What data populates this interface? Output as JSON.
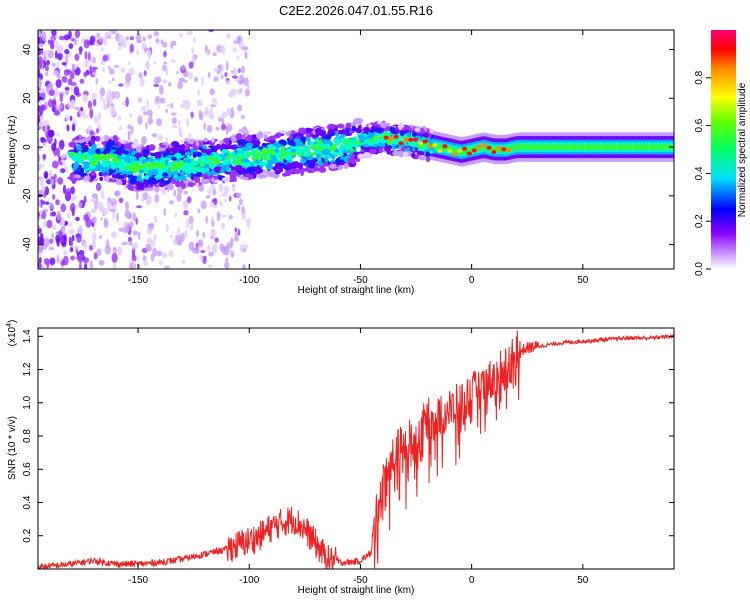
{
  "page_title": "C2E2.2026.047.01.55.R16",
  "chart_data": [
    {
      "type": "heatmap",
      "title": "C2E2.2026.047.01.55.R16",
      "xlabel": "Height of straight line (km)",
      "ylabel": "Frequency (Hz)",
      "xlim": [
        -195,
        91
      ],
      "ylim": [
        -50,
        48
      ],
      "xticks": [
        -150,
        -100,
        -50,
        0,
        50
      ],
      "yticks": [
        -40,
        -20,
        0,
        20,
        40
      ],
      "grid": false,
      "colorbar": {
        "label": "Normalized spectral amplitude",
        "range": [
          0.0,
          1.0
        ],
        "ticks": [
          0.0,
          0.2,
          0.4,
          0.6,
          0.8
        ],
        "colors": [
          "#ffffff",
          "#9900ff",
          "#0000ff",
          "#00ffff",
          "#00ff00",
          "#ffff00",
          "#ff0000",
          "#ff00aa"
        ]
      },
      "ridge": {
        "description": "spectral ridge center frequency",
        "x": [
          -160,
          -150,
          -140,
          -130,
          -120,
          -110,
          -100,
          -90,
          -80,
          -70,
          -60,
          -50,
          -45,
          -40,
          -35,
          -30,
          -25,
          -20,
          -15,
          -10,
          -5,
          0,
          5,
          10,
          15,
          20,
          30,
          40,
          50,
          60,
          70,
          80,
          90
        ],
        "freq": [
          -5,
          -9,
          -8,
          -7,
          -6,
          -5,
          -4,
          -3,
          -2,
          -1,
          0,
          2,
          3,
          4,
          3,
          3,
          2,
          1,
          0,
          -1,
          -2,
          -1,
          0,
          -1,
          -1,
          0,
          0,
          0,
          0,
          0,
          0,
          0,
          0
        ]
      }
    },
    {
      "type": "line",
      "title": "",
      "xlabel": "Height of straight line (km)",
      "ylabel": "SNR (10 * v/v)",
      "yscale_label": "(x10",
      "yscale_exp": "4",
      "xlim": [
        -195,
        91
      ],
      "ylim": [
        0,
        1.45
      ],
      "xticks": [
        -150,
        -100,
        -50,
        0,
        50
      ],
      "yticks": [
        0.2,
        0.4,
        0.6,
        0.8,
        1.0,
        1.2,
        1.4
      ],
      "grid": false,
      "series": [
        {
          "name": "SNR",
          "color": "#ee2222",
          "x": [
            -195,
            -180,
            -170,
            -160,
            -150,
            -140,
            -130,
            -120,
            -110,
            -100,
            -95,
            -90,
            -85,
            -80,
            -75,
            -70,
            -65,
            -60,
            -55,
            -50,
            -45,
            -42,
            -40,
            -38,
            -35,
            -30,
            -25,
            -20,
            -15,
            -10,
            -5,
            0,
            5,
            10,
            15,
            20,
            25,
            30,
            40,
            50,
            60,
            70,
            80,
            90
          ],
          "y": [
            0.01,
            0.03,
            0.05,
            0.03,
            0.03,
            0.04,
            0.06,
            0.09,
            0.12,
            0.17,
            0.2,
            0.25,
            0.28,
            0.3,
            0.24,
            0.15,
            0.06,
            0.04,
            0.04,
            0.05,
            0.1,
            0.4,
            0.5,
            0.6,
            0.7,
            0.75,
            0.8,
            0.9,
            0.92,
            0.95,
            1.0,
            1.05,
            1.1,
            1.15,
            1.22,
            1.3,
            1.33,
            1.34,
            1.36,
            1.37,
            1.38,
            1.39,
            1.39,
            1.4
          ]
        }
      ]
    }
  ]
}
